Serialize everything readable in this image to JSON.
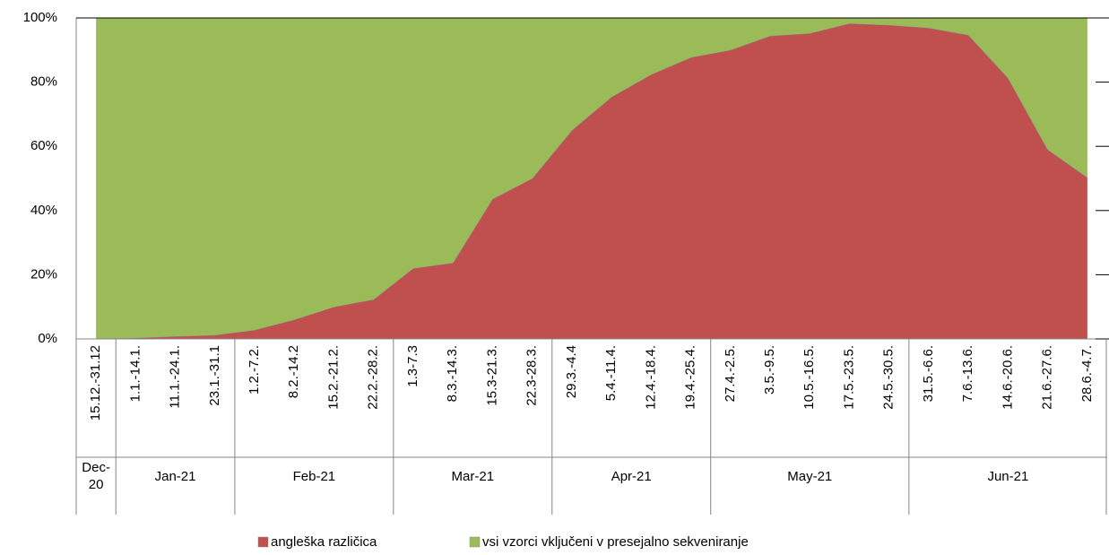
{
  "chart_data": {
    "type": "stacked_area",
    "categories": [
      "15.12.-31.12",
      "1.1.-14.1.",
      "11.1.-24.1.",
      "23.1.-31.1",
      "1.2.-7.2.",
      "8.2.-14.2",
      "15.2.-21.2.",
      "22.2.-28.2.",
      "1.3-7.3",
      "8.3.-14.3.",
      "15.3-21.3.",
      "22.3-28.3.",
      "29.3.-4.4",
      "5.4.-11.4.",
      "12.4.-18.4.",
      "19.4.-25.4.",
      "27.4.-2.5.",
      "3.5.-9.5.",
      "10.5.-16.5.",
      "17.5.-23.5.",
      "24.5.-30.5.",
      "31.5.-6.6.",
      "7.6.-13.6.",
      "14.6.-20.6.",
      "21.6.-27.6.",
      "28.6.-4.7."
    ],
    "groups": [
      "Dec-20",
      "Jan-21",
      "Feb-21",
      "Mar-21",
      "Apr-21",
      "May-21",
      "Jun-21"
    ],
    "series": [
      {
        "name": "angleška različica",
        "color": "#c0504d",
        "values": [
          0,
          0.3,
          0.8,
          1.2,
          2.8,
          6,
          10,
          12.3,
          22,
          23.7,
          43.6,
          50,
          65,
          75.4,
          82.4,
          87.7,
          90,
          94.4,
          95.2,
          98.3,
          97.8,
          96.9,
          94.7,
          81.3,
          59,
          50.3
        ]
      },
      {
        "name": "vsi vzorci vključeni v presejalno sekveniranje",
        "color": "#9bbb59",
        "values": [
          100,
          99.7,
          99.2,
          98.8,
          97.2,
          94,
          90,
          87.7,
          78,
          76.3,
          56.4,
          50,
          35,
          24.6,
          17.6,
          12.3,
          10,
          5.6,
          4.8,
          1.7,
          2.2,
          3.1,
          5.3,
          18.7,
          41,
          49.7
        ]
      }
    ],
    "ylim": [
      0,
      100
    ],
    "yticks": [
      {
        "value": 0,
        "label": "0%"
      },
      {
        "value": 20,
        "label": "20%"
      },
      {
        "value": 40,
        "label": "40%"
      },
      {
        "value": 60,
        "label": "60%"
      },
      {
        "value": 80,
        "label": "80%"
      },
      {
        "value": 100,
        "label": "100%"
      }
    ],
    "legend": "bottom"
  }
}
